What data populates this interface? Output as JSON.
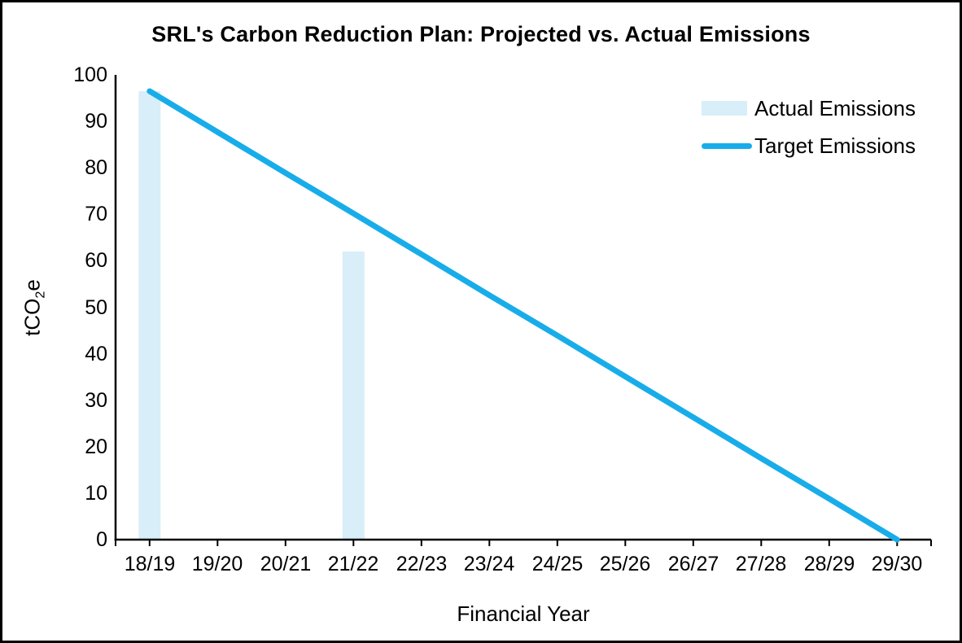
{
  "title": "SRL's Carbon Reduction Plan: Projected vs. Actual Emissions",
  "y_axis": {
    "title_prefix": "tCO",
    "title_sub": "2",
    "title_suffix": "e",
    "tick_labels": [
      "0",
      "10",
      "20",
      "30",
      "40",
      "50",
      "60",
      "70",
      "80",
      "90",
      "100"
    ]
  },
  "x_axis": {
    "title": "Financial Year"
  },
  "legend": {
    "items": [
      {
        "label": "Actual Emissions",
        "marker": "bar-swatch"
      },
      {
        "label": "Target Emissions",
        "marker": "line-swatch"
      }
    ]
  },
  "colors": {
    "actual_emissions_fill": "#D8EEF9",
    "target_emissions_stroke": "#18ADE9",
    "axis_line": "#000000",
    "text": "#000000",
    "background": "#FFFFFF",
    "border": "#000000"
  },
  "chart_data": {
    "type": "combo",
    "categories": [
      "18/19",
      "19/20",
      "20/21",
      "21/22",
      "22/23",
      "23/24",
      "24/25",
      "25/26",
      "26/27",
      "27/28",
      "28/29",
      "29/30"
    ],
    "series": [
      {
        "name": "Actual Emissions",
        "type": "bar",
        "values": [
          96.5,
          null,
          null,
          62,
          null,
          null,
          null,
          null,
          null,
          null,
          null,
          null
        ]
      },
      {
        "name": "Target Emissions",
        "type": "line",
        "values": [
          96.5,
          87.7,
          78.9,
          70.2,
          61.4,
          52.6,
          43.9,
          35.1,
          26.3,
          17.5,
          8.8,
          0
        ]
      }
    ],
    "title": "SRL's Carbon Reduction Plan: Projected vs. Actual Emissions",
    "xlabel": "Financial Year",
    "ylabel": "tCO2e",
    "ylim": [
      0,
      100
    ],
    "y_tick_step": 10,
    "grid": false,
    "legend_position": "top-right"
  }
}
